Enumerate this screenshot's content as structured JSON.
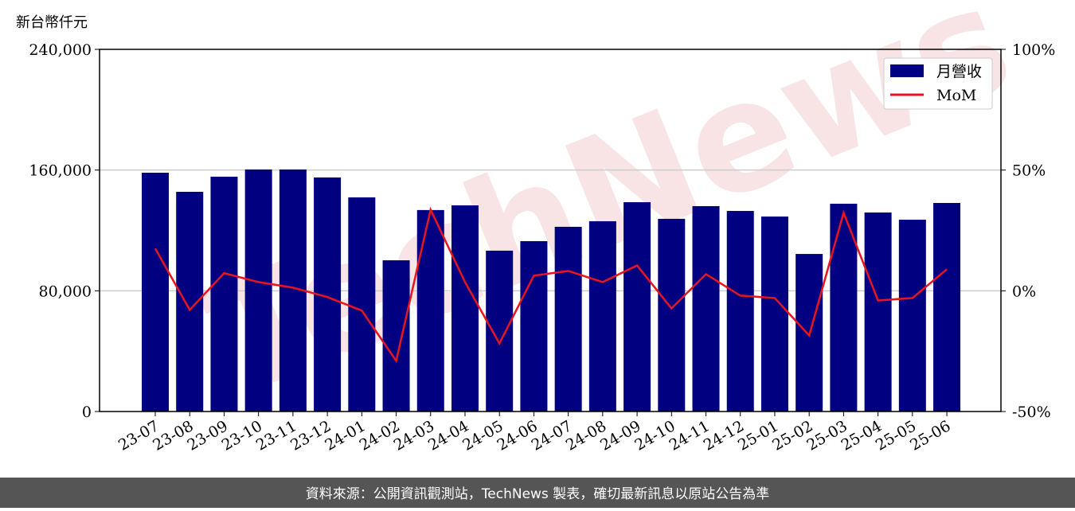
{
  "chart_data": {
    "type": "bar_line",
    "y_label": "新台幣仟元",
    "watermark": "TechNews",
    "footer": "資料來源：公開資訊觀測站，TechNews 製表，確切最新訊息以原站公告為準",
    "categories": [
      "23-07",
      "23-08",
      "23-09",
      "23-10",
      "23-11",
      "23-12",
      "24-01",
      "24-02",
      "24-03",
      "24-04",
      "24-05",
      "24-06",
      "24-07",
      "24-08",
      "24-09",
      "24-10",
      "24-11",
      "24-12",
      "25-01",
      "25-02",
      "25-03",
      "25-04",
      "25-05",
      "25-06"
    ],
    "series": [
      {
        "name": "月營收",
        "type": "bar",
        "color": "#000080",
        "values": [
          158250,
          145600,
          155600,
          160400,
          160400,
          155100,
          141900,
          100200,
          133500,
          136600,
          106600,
          112900,
          122400,
          126100,
          138700,
          127700,
          136100,
          132900,
          129200,
          104400,
          137700,
          131900,
          127100,
          138200
        ]
      },
      {
        "name": "MoM",
        "type": "line",
        "axis": "y2",
        "color": "#e8141e",
        "values": [
          17.5,
          -7.9,
          7.3,
          3.6,
          1.3,
          -2.6,
          -8.2,
          -29.0,
          33.6,
          3.6,
          -21.8,
          6.3,
          8.2,
          3.6,
          10.5,
          -7.3,
          6.9,
          -2.0,
          -3.0,
          -18.5,
          32.3,
          -4.0,
          -3.0,
          8.9
        ]
      }
    ],
    "ylim": [
      0,
      240000
    ],
    "yticks": [
      0,
      {
        "value": 80000,
        "label": "80,000"
      },
      {
        "value": 160000,
        "label": "160,000"
      },
      {
        "value": 240000,
        "label": "240,000"
      }
    ],
    "y2lim": [
      -50,
      100
    ],
    "y2ticks": [
      {
        "value": -50,
        "label": "-50%"
      },
      {
        "value": 0,
        "label": "0%"
      },
      {
        "value": 50,
        "label": "50%"
      },
      {
        "value": 100,
        "label": "100%"
      }
    ],
    "grid": true,
    "legend": "upper right"
  }
}
